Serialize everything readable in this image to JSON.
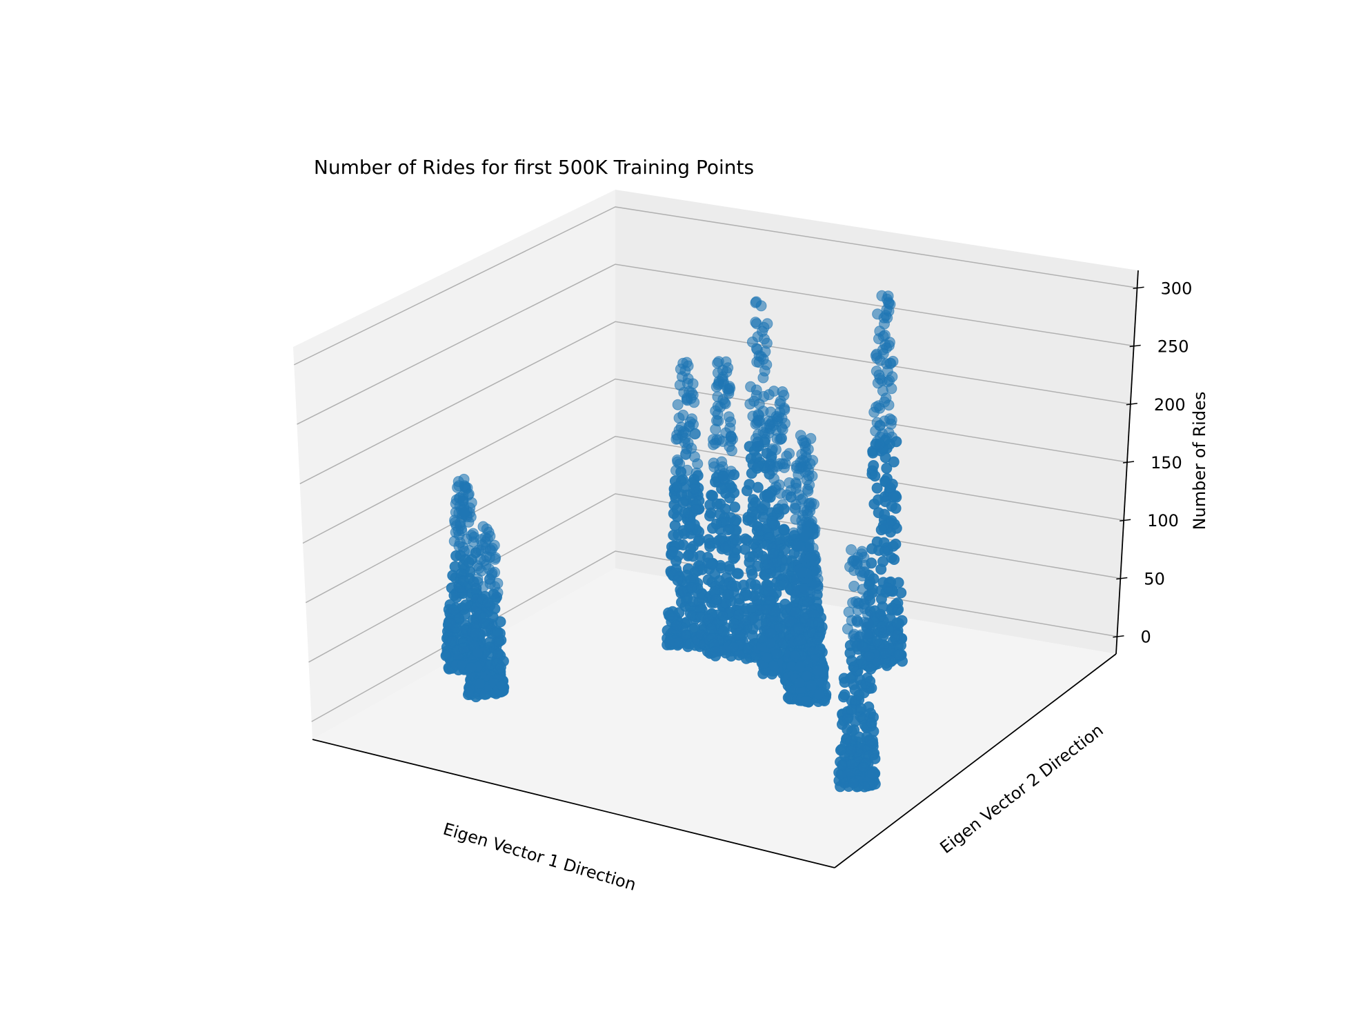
{
  "chart_data": {
    "type": "scatter",
    "projection": "3d",
    "title": "Number of Rides for first 500K Training Points",
    "xlabel": "Eigen Vector 1 Direction",
    "ylabel": "Eigen Vector 2 Direction",
    "zlabel": "Number of Rides",
    "xticks": [],
    "yticks": [],
    "zticks": [
      0,
      50,
      100,
      150,
      200,
      250,
      300
    ],
    "zlim": [
      -15,
      315
    ],
    "grid": true,
    "marker_color": "#1f77b4",
    "series": [
      {
        "points_note": "clusters of points (u,v in normalized floor coords 0-1, z in rides)",
        "clusters": [
          {
            "u": 0.07,
            "v": 0.38,
            "zmax": 160
          },
          {
            "u": 0.16,
            "v": 0.3,
            "zmax": 140
          },
          {
            "u": 0.31,
            "v": 0.7,
            "zmax": 240
          },
          {
            "u": 0.38,
            "v": 0.7,
            "zmax": 250
          },
          {
            "u": 0.44,
            "v": 0.72,
            "zmax": 305
          },
          {
            "u": 0.5,
            "v": 0.68,
            "zmax": 240
          },
          {
            "u": 0.56,
            "v": 0.66,
            "zmax": 210
          },
          {
            "u": 0.6,
            "v": 0.6,
            "zmax": 150
          },
          {
            "u": 0.62,
            "v": 0.82,
            "zmax": 315
          },
          {
            "u": 0.87,
            "v": 0.3,
            "zmax": 200
          }
        ]
      }
    ]
  }
}
